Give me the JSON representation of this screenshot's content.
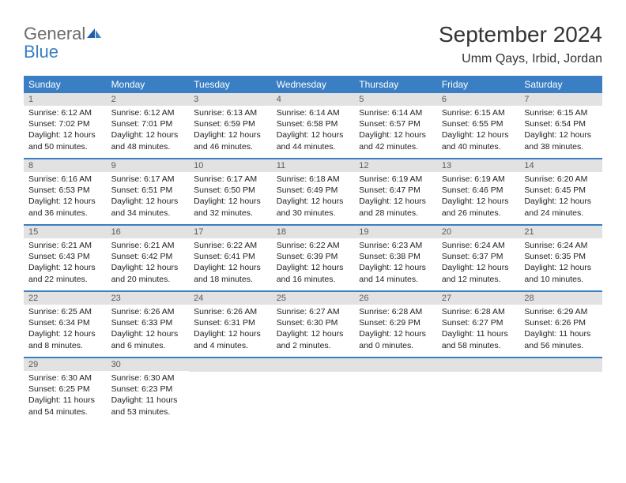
{
  "logo": {
    "general": "General",
    "blue": "Blue"
  },
  "header": {
    "month_title": "September 2024",
    "location": "Umm Qays, Irbid, Jordan"
  },
  "colors": {
    "header_bg": "#3a7fc4",
    "daynum_bg": "#e2e2e2",
    "text": "#222222",
    "logo_gray": "#6b6b6b",
    "logo_blue": "#3a7fc4"
  },
  "days_of_week": [
    "Sunday",
    "Monday",
    "Tuesday",
    "Wednesday",
    "Thursday",
    "Friday",
    "Saturday"
  ],
  "weeks": [
    [
      {
        "n": "1",
        "sr": "Sunrise: 6:12 AM",
        "ss": "Sunset: 7:02 PM",
        "dl": "Daylight: 12 hours and 50 minutes."
      },
      {
        "n": "2",
        "sr": "Sunrise: 6:12 AM",
        "ss": "Sunset: 7:01 PM",
        "dl": "Daylight: 12 hours and 48 minutes."
      },
      {
        "n": "3",
        "sr": "Sunrise: 6:13 AM",
        "ss": "Sunset: 6:59 PM",
        "dl": "Daylight: 12 hours and 46 minutes."
      },
      {
        "n": "4",
        "sr": "Sunrise: 6:14 AM",
        "ss": "Sunset: 6:58 PM",
        "dl": "Daylight: 12 hours and 44 minutes."
      },
      {
        "n": "5",
        "sr": "Sunrise: 6:14 AM",
        "ss": "Sunset: 6:57 PM",
        "dl": "Daylight: 12 hours and 42 minutes."
      },
      {
        "n": "6",
        "sr": "Sunrise: 6:15 AM",
        "ss": "Sunset: 6:55 PM",
        "dl": "Daylight: 12 hours and 40 minutes."
      },
      {
        "n": "7",
        "sr": "Sunrise: 6:15 AM",
        "ss": "Sunset: 6:54 PM",
        "dl": "Daylight: 12 hours and 38 minutes."
      }
    ],
    [
      {
        "n": "8",
        "sr": "Sunrise: 6:16 AM",
        "ss": "Sunset: 6:53 PM",
        "dl": "Daylight: 12 hours and 36 minutes."
      },
      {
        "n": "9",
        "sr": "Sunrise: 6:17 AM",
        "ss": "Sunset: 6:51 PM",
        "dl": "Daylight: 12 hours and 34 minutes."
      },
      {
        "n": "10",
        "sr": "Sunrise: 6:17 AM",
        "ss": "Sunset: 6:50 PM",
        "dl": "Daylight: 12 hours and 32 minutes."
      },
      {
        "n": "11",
        "sr": "Sunrise: 6:18 AM",
        "ss": "Sunset: 6:49 PM",
        "dl": "Daylight: 12 hours and 30 minutes."
      },
      {
        "n": "12",
        "sr": "Sunrise: 6:19 AM",
        "ss": "Sunset: 6:47 PM",
        "dl": "Daylight: 12 hours and 28 minutes."
      },
      {
        "n": "13",
        "sr": "Sunrise: 6:19 AM",
        "ss": "Sunset: 6:46 PM",
        "dl": "Daylight: 12 hours and 26 minutes."
      },
      {
        "n": "14",
        "sr": "Sunrise: 6:20 AM",
        "ss": "Sunset: 6:45 PM",
        "dl": "Daylight: 12 hours and 24 minutes."
      }
    ],
    [
      {
        "n": "15",
        "sr": "Sunrise: 6:21 AM",
        "ss": "Sunset: 6:43 PM",
        "dl": "Daylight: 12 hours and 22 minutes."
      },
      {
        "n": "16",
        "sr": "Sunrise: 6:21 AM",
        "ss": "Sunset: 6:42 PM",
        "dl": "Daylight: 12 hours and 20 minutes."
      },
      {
        "n": "17",
        "sr": "Sunrise: 6:22 AM",
        "ss": "Sunset: 6:41 PM",
        "dl": "Daylight: 12 hours and 18 minutes."
      },
      {
        "n": "18",
        "sr": "Sunrise: 6:22 AM",
        "ss": "Sunset: 6:39 PM",
        "dl": "Daylight: 12 hours and 16 minutes."
      },
      {
        "n": "19",
        "sr": "Sunrise: 6:23 AM",
        "ss": "Sunset: 6:38 PM",
        "dl": "Daylight: 12 hours and 14 minutes."
      },
      {
        "n": "20",
        "sr": "Sunrise: 6:24 AM",
        "ss": "Sunset: 6:37 PM",
        "dl": "Daylight: 12 hours and 12 minutes."
      },
      {
        "n": "21",
        "sr": "Sunrise: 6:24 AM",
        "ss": "Sunset: 6:35 PM",
        "dl": "Daylight: 12 hours and 10 minutes."
      }
    ],
    [
      {
        "n": "22",
        "sr": "Sunrise: 6:25 AM",
        "ss": "Sunset: 6:34 PM",
        "dl": "Daylight: 12 hours and 8 minutes."
      },
      {
        "n": "23",
        "sr": "Sunrise: 6:26 AM",
        "ss": "Sunset: 6:33 PM",
        "dl": "Daylight: 12 hours and 6 minutes."
      },
      {
        "n": "24",
        "sr": "Sunrise: 6:26 AM",
        "ss": "Sunset: 6:31 PM",
        "dl": "Daylight: 12 hours and 4 minutes."
      },
      {
        "n": "25",
        "sr": "Sunrise: 6:27 AM",
        "ss": "Sunset: 6:30 PM",
        "dl": "Daylight: 12 hours and 2 minutes."
      },
      {
        "n": "26",
        "sr": "Sunrise: 6:28 AM",
        "ss": "Sunset: 6:29 PM",
        "dl": "Daylight: 12 hours and 0 minutes."
      },
      {
        "n": "27",
        "sr": "Sunrise: 6:28 AM",
        "ss": "Sunset: 6:27 PM",
        "dl": "Daylight: 11 hours and 58 minutes."
      },
      {
        "n": "28",
        "sr": "Sunrise: 6:29 AM",
        "ss": "Sunset: 6:26 PM",
        "dl": "Daylight: 11 hours and 56 minutes."
      }
    ],
    [
      {
        "n": "29",
        "sr": "Sunrise: 6:30 AM",
        "ss": "Sunset: 6:25 PM",
        "dl": "Daylight: 11 hours and 54 minutes."
      },
      {
        "n": "30",
        "sr": "Sunrise: 6:30 AM",
        "ss": "Sunset: 6:23 PM",
        "dl": "Daylight: 11 hours and 53 minutes."
      },
      null,
      null,
      null,
      null,
      null
    ]
  ]
}
